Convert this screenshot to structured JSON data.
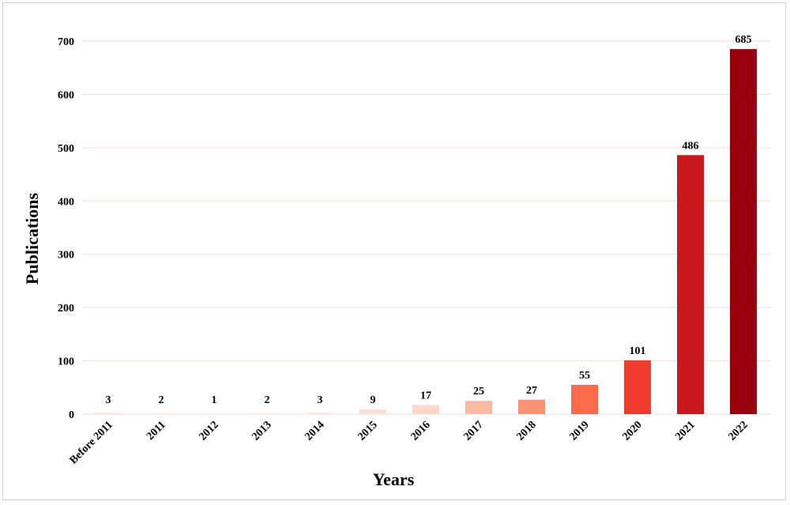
{
  "chart_data": {
    "type": "bar",
    "categories": [
      "Before 2011",
      "2011",
      "2012",
      "2013",
      "2014",
      "2015",
      "2016",
      "2017",
      "2018",
      "2019",
      "2020",
      "2021",
      "2022"
    ],
    "values": [
      3,
      2,
      1,
      2,
      3,
      9,
      17,
      25,
      27,
      55,
      101,
      486,
      685
    ],
    "data_labels": [
      "3",
      "2",
      "1",
      "2",
      "3",
      "9",
      "17",
      "25",
      "27",
      "55",
      "101",
      "486",
      "685"
    ],
    "bar_colors": [
      "#fee8df",
      "#fee8df",
      "#fee8df",
      "#fee8df",
      "#fee8df",
      "#fde0d2",
      "#fcd8c8",
      "#fcbba1",
      "#fc9272",
      "#fb6a4a",
      "#ef3b2c",
      "#cb181d",
      "#99000d"
    ],
    "xlabel": "Years",
    "ylabel": "Publications",
    "ylim": [
      0,
      700
    ],
    "yticks": [
      0,
      100,
      200,
      300,
      400,
      500,
      600,
      700
    ],
    "ytick_labels": [
      "0",
      "100",
      "200",
      "300",
      "400",
      "500",
      "600",
      "700"
    ],
    "grid": true,
    "legend": "none"
  }
}
